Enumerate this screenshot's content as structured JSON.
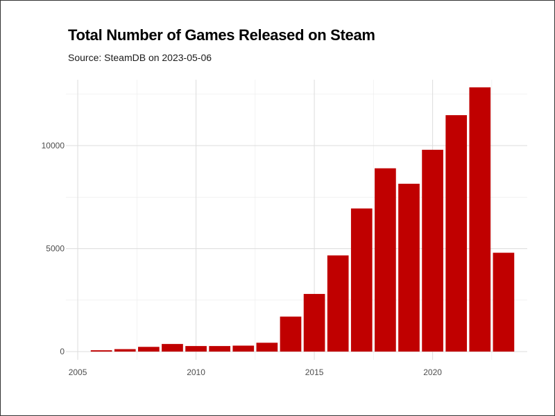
{
  "chart_data": {
    "type": "bar",
    "title": "Total Number of Games Released on Steam",
    "subtitle": "Source: SteamDB on 2023-05-06",
    "xlabel": "",
    "ylabel": "",
    "x": [
      2006,
      2007,
      2008,
      2009,
      2010,
      2011,
      2012,
      2013,
      2014,
      2015,
      2016,
      2017,
      2018,
      2019,
      2020,
      2021,
      2022,
      2023
    ],
    "values": [
      65,
      120,
      230,
      370,
      270,
      270,
      290,
      430,
      1700,
      2800,
      4670,
      6950,
      8900,
      8150,
      9800,
      11480,
      12830,
      4800
    ],
    "xlim": [
      2004.5,
      2024
    ],
    "ylim": [
      -400,
      13200
    ],
    "x_ticks": [
      2005,
      2010,
      2015,
      2020
    ],
    "y_ticks": [
      0,
      5000,
      10000
    ],
    "bar_color": "#C00000",
    "grid": true,
    "legend": "none"
  }
}
